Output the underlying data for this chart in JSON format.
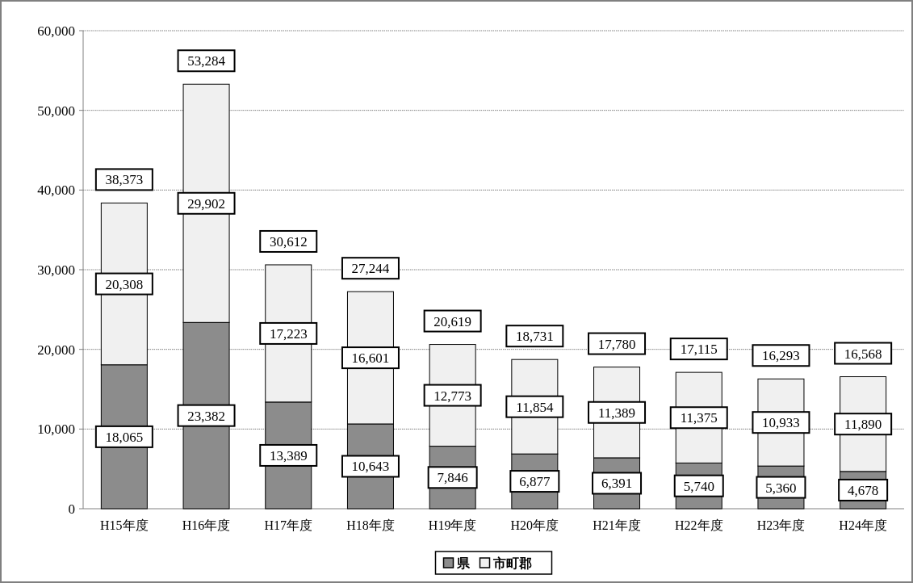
{
  "chart_data": {
    "type": "bar",
    "stacked": true,
    "categories": [
      "H15年度",
      "H16年度",
      "H17年度",
      "H18年度",
      "H19年度",
      "H20年度",
      "H21年度",
      "H22年度",
      "H23年度",
      "H24年度"
    ],
    "series": [
      {
        "name": "県",
        "color": "#8c8c8c",
        "values": [
          18065,
          23382,
          13389,
          10643,
          7846,
          6877,
          6391,
          5740,
          5360,
          4678
        ],
        "value_labels": [
          "18,065",
          "23,382",
          "13,389",
          "10,643",
          "7,846",
          "6,877",
          "6,391",
          "5,740",
          "5,360",
          "4,678"
        ]
      },
      {
        "name": "市町郡",
        "color": "#f0f0f0",
        "values": [
          20308,
          29902,
          17223,
          16601,
          12773,
          11854,
          11389,
          11375,
          10933,
          11890
        ],
        "value_labels": [
          "20,308",
          "29,902",
          "17,223",
          "16,601",
          "12,773",
          "11,854",
          "11,389",
          "11,375",
          "10,933",
          "11,890"
        ]
      }
    ],
    "totals": [
      "38,373",
      "53,284",
      "30,612",
      "27,244",
      "20,619",
      "18,731",
      "17,780",
      "17,115",
      "16,293",
      "16,568"
    ],
    "ylim": [
      0,
      60000
    ],
    "yticks": [
      {
        "value": 0,
        "label": "0"
      },
      {
        "value": 10000,
        "label": "10,000"
      },
      {
        "value": 20000,
        "label": "20,000"
      },
      {
        "value": 30000,
        "label": "30,000"
      },
      {
        "value": 40000,
        "label": "40,000"
      },
      {
        "value": 50000,
        "label": "50,000"
      },
      {
        "value": 60000,
        "label": "60,000"
      }
    ],
    "grid": "y",
    "legend": "bottom"
  }
}
